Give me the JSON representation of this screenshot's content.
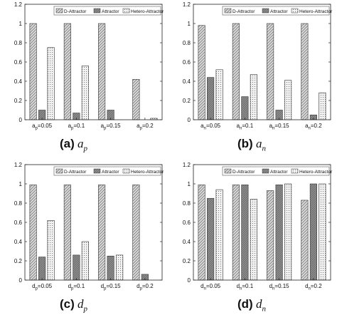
{
  "legend_labels": [
    "D-Attractor",
    "Attractor",
    "Hetero-Attractor"
  ],
  "series_colors": [
    "#d9d9d9",
    "#8c8c8c",
    "#f2f2f2"
  ],
  "chart_data": [
    {
      "type": "bar",
      "panel": "(a)",
      "caption_label": "(a)",
      "caption_var": "a",
      "caption_sub": "p",
      "categories": [
        "a_p=0.05",
        "a_p=0.1",
        "a_p=0.15",
        "a_p=0.2"
      ],
      "tick_base": "a",
      "tick_sub": "p",
      "tick_vals": [
        "=0.05",
        "=0.1",
        "=0.15",
        "=0.2"
      ],
      "series": [
        {
          "name": "D-Attractor",
          "values": [
            1.0,
            1.0,
            1.0,
            0.42
          ]
        },
        {
          "name": "Attractor",
          "values": [
            0.1,
            0.07,
            0.1,
            0.0
          ]
        },
        {
          "name": "Hetero-Attractor",
          "values": [
            0.75,
            0.56,
            0.0,
            0.015
          ]
        }
      ],
      "ylim": [
        0,
        1.2
      ],
      "yticks": [
        "0",
        "0.2",
        "0.4",
        "0.6",
        "0.8",
        "1",
        "1.2"
      ],
      "legend": "top-right"
    },
    {
      "type": "bar",
      "panel": "(b)",
      "caption_label": "(b)",
      "caption_var": "a",
      "caption_sub": "n",
      "categories": [
        "a_n=0.05",
        "a_n=0.1",
        "a_n=0.15",
        "a_n=0.2"
      ],
      "tick_base": "a",
      "tick_sub": "n",
      "tick_vals": [
        "=0.05",
        "=0.1",
        "=0.15",
        "=0.2"
      ],
      "series": [
        {
          "name": "D-Attractor",
          "values": [
            0.98,
            1.0,
            1.0,
            1.0
          ]
        },
        {
          "name": "Attractor",
          "values": [
            0.44,
            0.24,
            0.1,
            0.05
          ]
        },
        {
          "name": "Hetero-Attractor",
          "values": [
            0.52,
            0.47,
            0.41,
            0.28
          ]
        }
      ],
      "ylim": [
        0,
        1.2
      ],
      "yticks": [
        "0",
        "0.2",
        "0.4",
        "0.6",
        "0.8",
        "1",
        "1.2"
      ],
      "legend": "top-right"
    },
    {
      "type": "bar",
      "panel": "(c)",
      "caption_label": "(c)",
      "caption_var": "d",
      "caption_sub": "p",
      "categories": [
        "d_p=0.05",
        "d_p=0.1",
        "d_p=0.15",
        "d_p=0.2"
      ],
      "tick_base": "d",
      "tick_sub": "p",
      "tick_vals": [
        "=0.05",
        "=0.1",
        "=0.15",
        "=0.2"
      ],
      "series": [
        {
          "name": "D-Attractor",
          "values": [
            0.99,
            0.99,
            0.99,
            0.99
          ]
        },
        {
          "name": "Attractor",
          "values": [
            0.24,
            0.26,
            0.25,
            0.06
          ]
        },
        {
          "name": "Hetero-Attractor",
          "values": [
            0.62,
            0.4,
            0.26,
            0.0
          ]
        }
      ],
      "ylim": [
        0,
        1.2
      ],
      "yticks": [
        "0",
        "0.2",
        "0.4",
        "0.6",
        "0.8",
        "1",
        "1.2"
      ],
      "legend": "top-right"
    },
    {
      "type": "bar",
      "panel": "(d)",
      "caption_label": "(d)",
      "caption_var": "d",
      "caption_sub": "n",
      "categories": [
        "d_n=0.05",
        "d_n=0.1",
        "d_n=0.15",
        "d_n=0.2"
      ],
      "tick_base": "d",
      "tick_sub": "n",
      "tick_vals": [
        "=0.05",
        "=0.1",
        "=0.15",
        "=0.2"
      ],
      "series": [
        {
          "name": "D-Attractor",
          "values": [
            0.99,
            0.99,
            0.93,
            0.83
          ]
        },
        {
          "name": "Attractor",
          "values": [
            0.85,
            0.99,
            0.99,
            1.0
          ]
        },
        {
          "name": "Hetero-Attractor",
          "values": [
            0.94,
            0.84,
            1.0,
            1.0
          ]
        }
      ],
      "ylim": [
        0,
        1.2
      ],
      "yticks": [
        "0",
        "0.2",
        "0.4",
        "0.6",
        "0.8",
        "1",
        "1.2"
      ],
      "legend": "top-right"
    }
  ]
}
